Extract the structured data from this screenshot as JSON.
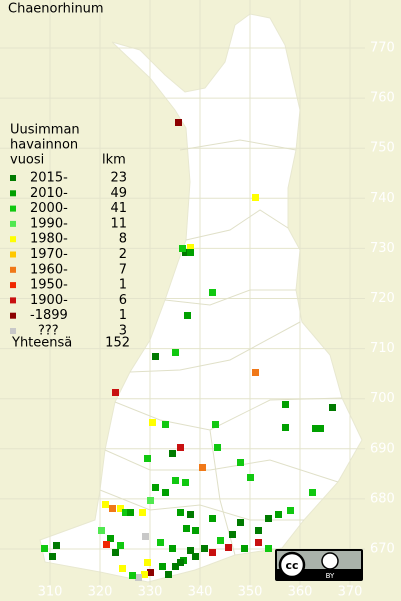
{
  "title": "Chaenorhinum",
  "legend": {
    "header": [
      "Uusimman",
      "havainnon",
      "vuosi"
    ],
    "count_header": "lkm",
    "rows": [
      {
        "label": "2015-",
        "count": "23",
        "color": "#007a00"
      },
      {
        "label": "2010-",
        "count": "49",
        "color": "#00a000"
      },
      {
        "label": "2000-",
        "count": "41",
        "color": "#10c810"
      },
      {
        "label": "1990-",
        "count": "11",
        "color": "#50e850"
      },
      {
        "label": "1980-",
        "count": "8",
        "color": "#ffff00"
      },
      {
        "label": "1970-",
        "count": "2",
        "color": "#ffc800"
      },
      {
        "label": "1960-",
        "count": "7",
        "color": "#f07818"
      },
      {
        "label": "1950-",
        "count": "1",
        "color": "#f02800"
      },
      {
        "label": "1900-",
        "count": "6",
        "color": "#c81010"
      },
      {
        "label": "-1899",
        "count": "1",
        "color": "#8c0000"
      },
      {
        "label": "???",
        "count": "3",
        "color": "#c8c8c8"
      }
    ],
    "total": {
      "label": "Yhteensä",
      "count": "152"
    }
  },
  "grid": {
    "northing": [
      770,
      760,
      750,
      740,
      730,
      720,
      710,
      700,
      690,
      680,
      670
    ],
    "easting": [
      310,
      320,
      330,
      340,
      350,
      360,
      370
    ]
  },
  "license": {
    "cc": "cc",
    "by": "BY"
  }
}
